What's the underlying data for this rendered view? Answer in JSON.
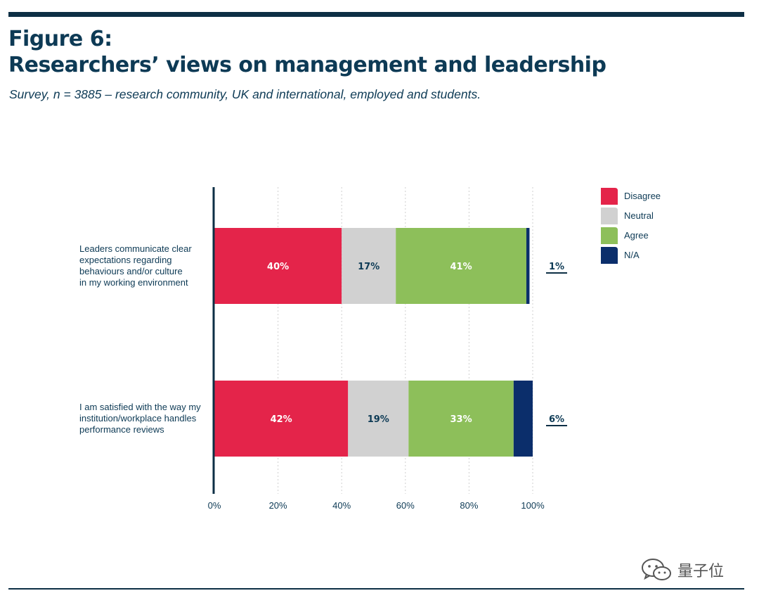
{
  "header": {
    "figure_label": "Figure 6:",
    "title": "Researchers’ views on management and leadership",
    "subtitle": "Survey, n = 3885 – research community, UK and international, employed and students."
  },
  "colors": {
    "disagree": "#e4244a",
    "neutral": "#d1d1d1",
    "agree": "#8dbf5a",
    "na": "#0b2e6b",
    "axis": "#0d2f45",
    "text": "#0d3a55"
  },
  "chart_data": {
    "type": "bar",
    "orientation": "horizontal",
    "stacked": true,
    "categories": [
      "Leaders communicate clear expectations regarding behaviours and/or culture in my working environment",
      "I am satisfied with the way my institution/workplace handles performance reviews"
    ],
    "category_lines": [
      [
        "Leaders communicate clear",
        "expectations regarding",
        "behaviours and/or culture",
        "in my working environment"
      ],
      [
        "I am satisfied with the way my",
        "institution/workplace handles",
        "performance reviews"
      ]
    ],
    "series": [
      {
        "name": "Disagree",
        "color": "#e4244a",
        "values": [
          40,
          42
        ],
        "labels": [
          "40%",
          "42%"
        ]
      },
      {
        "name": "Neutral",
        "color": "#d1d1d1",
        "values": [
          17,
          19
        ],
        "labels": [
          "17%",
          "19%"
        ]
      },
      {
        "name": "Agree",
        "color": "#8dbf5a",
        "values": [
          41,
          33
        ],
        "labels": [
          "41%",
          "33%"
        ]
      },
      {
        "name": "N/A",
        "color": "#0b2e6b",
        "values": [
          1,
          6
        ],
        "labels": [
          "1%",
          "6%"
        ]
      }
    ],
    "xlim": [
      0,
      100
    ],
    "xticks": [
      0,
      20,
      40,
      60,
      80,
      100
    ],
    "xtick_labels": [
      "0%",
      "20%",
      "40%",
      "60%",
      "80%",
      "100%"
    ],
    "grid": true,
    "legend_position": "top-right"
  },
  "watermark": {
    "text": "量子位",
    "icon": "wechat-icon"
  }
}
